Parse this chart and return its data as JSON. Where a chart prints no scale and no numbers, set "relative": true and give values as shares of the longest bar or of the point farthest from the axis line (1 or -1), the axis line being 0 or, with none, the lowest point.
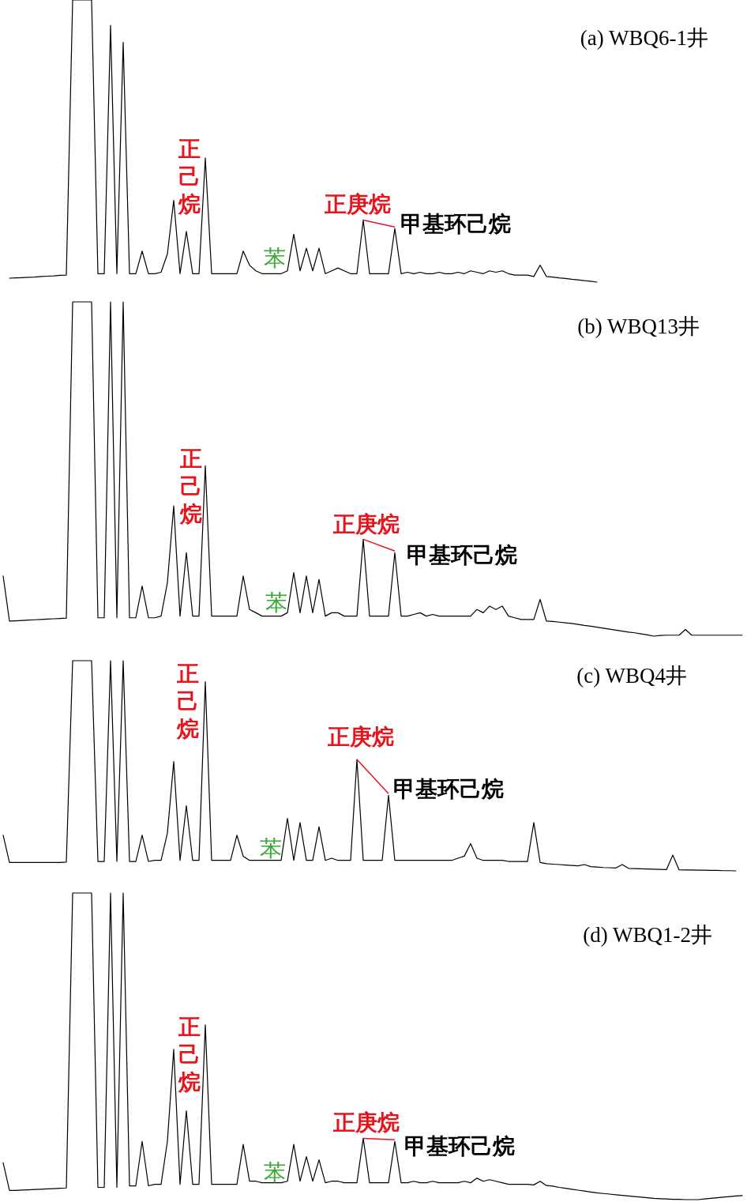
{
  "chart_data": [
    {
      "type": "line",
      "relative": true,
      "title": "(a) WBQ6-1井",
      "annotations": [
        "正己烷",
        "正庚烷",
        "甲基环己烷",
        "苯"
      ],
      "categories": [
        null,
        null,
        null,
        null,
        null,
        null,
        null,
        null,
        null,
        null,
        null,
        null,
        null,
        null,
        null,
        null,
        null,
        null,
        null,
        null,
        null,
        null,
        null,
        null,
        null,
        null,
        null,
        null,
        null,
        null,
        null,
        null,
        null,
        null,
        null,
        null,
        null,
        null,
        null,
        null,
        null,
        null,
        null,
        null,
        null,
        null,
        null,
        null,
        null,
        null,
        null,
        null,
        null,
        null,
        null,
        null,
        null,
        null,
        null,
        null,
        null,
        null,
        null,
        null,
        null,
        null,
        null,
        null,
        null,
        null,
        null,
        null,
        null,
        null,
        null,
        null,
        null,
        null,
        null,
        null,
        null,
        null,
        null,
        null,
        null,
        null,
        null,
        null,
        null,
        null,
        null,
        null,
        null,
        null,
        null,
        null,
        null,
        null,
        null,
        null,
        null,
        null,
        null,
        null,
        null,
        null,
        null,
        null,
        null,
        null,
        null,
        null,
        null,
        null,
        null,
        null,
        null,
        null
      ],
      "series": [
        {
          "color": "#000000",
          "values": [
            null,
            0.014,
            0.015,
            0.016,
            0.017,
            0.018,
            0.02,
            0.021,
            0.022,
            0.024,
            0.025,
            1,
            1,
            1,
            1,
            0.03,
            0.03,
            0.91,
            0.03,
            0.85,
            0.03,
            0.03,
            0.11,
            0.03,
            0.03,
            0.035,
            0.1,
            0.29,
            0.03,
            0.18,
            0.03,
            0.03,
            0.44,
            0.03,
            0.03,
            0.03,
            0.03,
            0.03,
            0.11,
            0.06,
            0.04,
            0.03,
            0.03,
            0.03,
            0.03,
            0.04,
            0.17,
            0.04,
            0.12,
            0.04,
            0.12,
            0.03,
            0.04,
            0.05,
            0.04,
            0.03,
            0.03,
            0.22,
            0.03,
            0.03,
            0.03,
            0.03,
            0.19,
            0.03,
            0.035,
            0.03,
            0.035,
            0.03,
            0.03,
            0.035,
            0.03,
            0.03,
            0.035,
            0.03,
            0.04,
            0.035,
            0.03,
            0.04,
            0.035,
            0.04,
            0.03,
            0.025,
            0.025,
            0.025,
            0.02,
            0.06,
            0.02,
            0.018,
            0.015,
            0.013,
            0.01,
            0.008,
            0.005,
            0.003,
            0,
            null,
            null,
            null,
            null,
            null,
            null,
            null,
            null,
            null,
            null,
            null,
            null,
            null,
            null,
            null,
            null,
            null,
            null,
            null,
            null,
            null,
            null,
            null
          ]
        }
      ]
    },
    {
      "type": "line",
      "relative": true,
      "title": "(b) WBQ13井",
      "annotations": [
        "正己烷",
        "正庚烷",
        "甲基环己烷",
        "苯"
      ],
      "categories": [
        null,
        null,
        null,
        null,
        null,
        null,
        null,
        null,
        null,
        null,
        null,
        null,
        null,
        null,
        null,
        null,
        null,
        null,
        null,
        null,
        null,
        null,
        null,
        null,
        null,
        null,
        null,
        null,
        null,
        null,
        null,
        null,
        null,
        null,
        null,
        null,
        null,
        null,
        null,
        null,
        null,
        null,
        null,
        null,
        null,
        null,
        null,
        null,
        null,
        null,
        null,
        null,
        null,
        null,
        null,
        null,
        null,
        null,
        null,
        null,
        null,
        null,
        null,
        null,
        null,
        null,
        null,
        null,
        null,
        null,
        null,
        null,
        null,
        null,
        null,
        null,
        null,
        null,
        null,
        null,
        null,
        null,
        null,
        null,
        null,
        null,
        null,
        null,
        null,
        null,
        null,
        null,
        null,
        null,
        null,
        null,
        null,
        null,
        null,
        null,
        null,
        null,
        null,
        null,
        null,
        null,
        null,
        null,
        null,
        null,
        null,
        null,
        null,
        null,
        null,
        null,
        null,
        null
      ],
      "series": [
        {
          "color": "#000000",
          "values": [
            0.18,
            0.045,
            0.046,
            0.047,
            0.048,
            0.049,
            0.05,
            0.051,
            0.052,
            0.053,
            0.054,
            1,
            1,
            1,
            1,
            0.055,
            0.055,
            1,
            0.055,
            1,
            0.055,
            0.055,
            0.15,
            0.055,
            0.055,
            0.06,
            0.16,
            0.39,
            0.06,
            0.25,
            0.06,
            0.06,
            0.51,
            0.06,
            0.06,
            0.06,
            0.06,
            0.06,
            0.18,
            0.08,
            0.07,
            0.06,
            0.06,
            0.06,
            0.06,
            0.07,
            0.19,
            0.07,
            0.18,
            0.07,
            0.17,
            0.06,
            0.07,
            0.07,
            0.06,
            0.06,
            0.06,
            0.29,
            0.06,
            0.06,
            0.06,
            0.06,
            0.25,
            0.06,
            0.06,
            0.065,
            0.07,
            0.06,
            0.065,
            0.06,
            0.06,
            0.06,
            0.06,
            0.06,
            0.06,
            0.08,
            0.07,
            0.09,
            0.08,
            0.09,
            0.06,
            0.055,
            0.05,
            0.05,
            0.05,
            0.11,
            0.045,
            0.044,
            0.042,
            0.04,
            0.038,
            0.035,
            0.032,
            0.03,
            0.027,
            0.024,
            0.021,
            0.018,
            0.015,
            0.012,
            0.01,
            0.007,
            0.004,
            0,
            0.002,
            0.003,
            0.003,
            0.003,
            0.02,
            0.003,
            0.003,
            0.003,
            0.003,
            0.003,
            0.003,
            0.003,
            0.003,
            0.003
          ]
        }
      ]
    },
    {
      "type": "line",
      "relative": true,
      "title": "(c) WBQ4井",
      "annotations": [
        "正己烷",
        "正庚烷",
        "甲基环己烷",
        "苯"
      ],
      "categories": [
        null,
        null,
        null,
        null,
        null,
        null,
        null,
        null,
        null,
        null,
        null,
        null,
        null,
        null,
        null,
        null,
        null,
        null,
        null,
        null,
        null,
        null,
        null,
        null,
        null,
        null,
        null,
        null,
        null,
        null,
        null,
        null,
        null,
        null,
        null,
        null,
        null,
        null,
        null,
        null,
        null,
        null,
        null,
        null,
        null,
        null,
        null,
        null,
        null,
        null,
        null,
        null,
        null,
        null,
        null,
        null,
        null,
        null,
        null,
        null,
        null,
        null,
        null,
        null,
        null,
        null,
        null,
        null,
        null,
        null,
        null,
        null,
        null,
        null,
        null,
        null,
        null,
        null,
        null,
        null,
        null,
        null,
        null,
        null,
        null,
        null,
        null,
        null,
        null,
        null,
        null,
        null,
        null,
        null,
        null,
        null,
        null,
        null,
        null,
        null,
        null,
        null,
        null,
        null,
        null,
        null,
        null,
        null,
        null,
        null,
        null,
        null,
        null,
        null,
        null,
        null,
        null,
        null
      ],
      "series": [
        {
          "color": "#000000",
          "values": [
            0.17,
            0.04,
            0.04,
            0.04,
            0.04,
            0.04,
            0.04,
            0.04,
            0.04,
            0.04,
            0.042,
            1,
            1,
            1,
            1,
            0.045,
            0.045,
            1,
            0.045,
            1,
            0.045,
            0.045,
            0.17,
            0.045,
            0.05,
            0.05,
            0.18,
            0.52,
            0.05,
            0.31,
            0.05,
            0.05,
            0.9,
            0.05,
            0.05,
            0.05,
            0.05,
            0.17,
            0.07,
            0.05,
            0.05,
            0.05,
            0.05,
            0.05,
            0.05,
            0.25,
            0.05,
            0.23,
            0.05,
            0.05,
            0.21,
            0.05,
            0.06,
            0.05,
            0.05,
            0.05,
            0.53,
            0.05,
            0.05,
            0.05,
            0.05,
            0.36,
            0.05,
            0.05,
            0.05,
            0.05,
            0.05,
            0.05,
            0.05,
            0.05,
            0.05,
            0.05,
            0.06,
            0.07,
            0.13,
            0.06,
            0.05,
            0.05,
            0.05,
            0.05,
            0.045,
            0.045,
            0.045,
            0.045,
            0.23,
            0.04,
            0.034,
            0.032,
            0.03,
            0.028,
            0.026,
            0.024,
            0.03,
            0.02,
            0.018,
            0.016,
            0.015,
            0.014,
            0.03,
            0.012,
            0.011,
            0.01,
            0.009,
            0.008,
            0.007,
            0.006,
            0.075,
            0.005,
            0.004,
            0.004,
            0.003,
            0.003,
            0.002,
            0.002,
            0.001,
            0.001,
            0,
            null
          ]
        }
      ]
    },
    {
      "type": "line",
      "relative": true,
      "title": "(d) WBQ1-2井",
      "annotations": [
        "正己烷",
        "正庚烷",
        "甲基环己烷",
        "苯"
      ],
      "categories": [
        null,
        null,
        null,
        null,
        null,
        null,
        null,
        null,
        null,
        null,
        null,
        null,
        null,
        null,
        null,
        null,
        null,
        null,
        null,
        null,
        null,
        null,
        null,
        null,
        null,
        null,
        null,
        null,
        null,
        null,
        null,
        null,
        null,
        null,
        null,
        null,
        null,
        null,
        null,
        null,
        null,
        null,
        null,
        null,
        null,
        null,
        null,
        null,
        null,
        null,
        null,
        null,
        null,
        null,
        null,
        null,
        null,
        null,
        null,
        null,
        null,
        null,
        null,
        null,
        null,
        null,
        null,
        null,
        null,
        null,
        null,
        null,
        null,
        null,
        null,
        null,
        null,
        null,
        null,
        null,
        null,
        null,
        null,
        null,
        null,
        null,
        null,
        null,
        null,
        null,
        null,
        null,
        null,
        null,
        null,
        null,
        null,
        null,
        null,
        null,
        null,
        null,
        null,
        null,
        null,
        null,
        null,
        null,
        null,
        null,
        null,
        null,
        null,
        null,
        null,
        null,
        null,
        null
      ],
      "series": [
        {
          "color": "#000000",
          "values": [
            0.12,
            0.03,
            0.03,
            0.031,
            0.032,
            0.033,
            0.034,
            0.035,
            0.036,
            0.037,
            0.038,
            1,
            1,
            1,
            1,
            0.04,
            0.04,
            1,
            0.04,
            1,
            0.045,
            0.045,
            0.19,
            0.045,
            0.05,
            0.05,
            0.19,
            0.49,
            0.05,
            0.29,
            0.05,
            0.05,
            0.57,
            0.05,
            0.05,
            0.05,
            0.05,
            0.05,
            0.18,
            0.06,
            0.06,
            0.055,
            0.055,
            0.055,
            0.055,
            0.06,
            0.18,
            0.06,
            0.14,
            0.06,
            0.13,
            0.055,
            0.06,
            0.06,
            0.055,
            0.055,
            0.055,
            0.2,
            0.055,
            0.055,
            0.055,
            0.055,
            0.19,
            0.055,
            0.055,
            0.06,
            0.055,
            0.055,
            0.06,
            0.055,
            0.055,
            0.055,
            0.055,
            0.06,
            0.055,
            0.07,
            0.06,
            0.065,
            0.06,
            0.055,
            0.05,
            0.05,
            0.05,
            0.05,
            0.048,
            0.06,
            0.046,
            0.044,
            0.04,
            0.037,
            0.034,
            0.031,
            0.028,
            0.025,
            0.022,
            0.02,
            0.018,
            0.016,
            0.014,
            0.012,
            0.01,
            0.008,
            0.006,
            0.004,
            0.003,
            0.002,
            0.001,
            0.001,
            0,
            0,
            0,
            0.002,
            0.004,
            0.006,
            0.008,
            0.01,
            0.012,
            0.013
          ]
        }
      ]
    }
  ]
}
